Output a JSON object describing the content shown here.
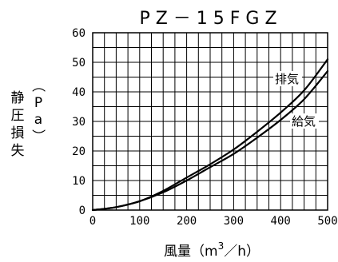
{
  "chart_data": {
    "type": "line",
    "title": "PZ－15FGZ",
    "xlabel": "風量（m³／h）",
    "xlabel_parts": {
      "main": "風量（m",
      "sup": "3",
      "tail": "／h）"
    },
    "ylabel": [
      "静",
      "圧",
      "損",
      "失",
      "（",
      "P",
      "a",
      "）"
    ],
    "xlim": [
      0,
      500
    ],
    "ylim": [
      0,
      60
    ],
    "x_ticks": [
      0,
      100,
      200,
      300,
      400,
      500
    ],
    "y_ticks": [
      0,
      10,
      20,
      30,
      40,
      50,
      60
    ],
    "grid": true,
    "series": [
      {
        "name": "排気",
        "x": [
          0,
          50,
          100,
          150,
          200,
          250,
          300,
          350,
          400,
          450,
          500
        ],
        "values": [
          0,
          1,
          3,
          6.5,
          11,
          15.5,
          20.5,
          26.5,
          33,
          40.5,
          51
        ]
      },
      {
        "name": "給気",
        "x": [
          0,
          50,
          100,
          150,
          200,
          250,
          300,
          350,
          400,
          450,
          500
        ],
        "values": [
          0,
          1,
          3,
          6,
          10,
          14.5,
          19,
          24.5,
          30.5,
          37.5,
          47
        ]
      }
    ]
  }
}
